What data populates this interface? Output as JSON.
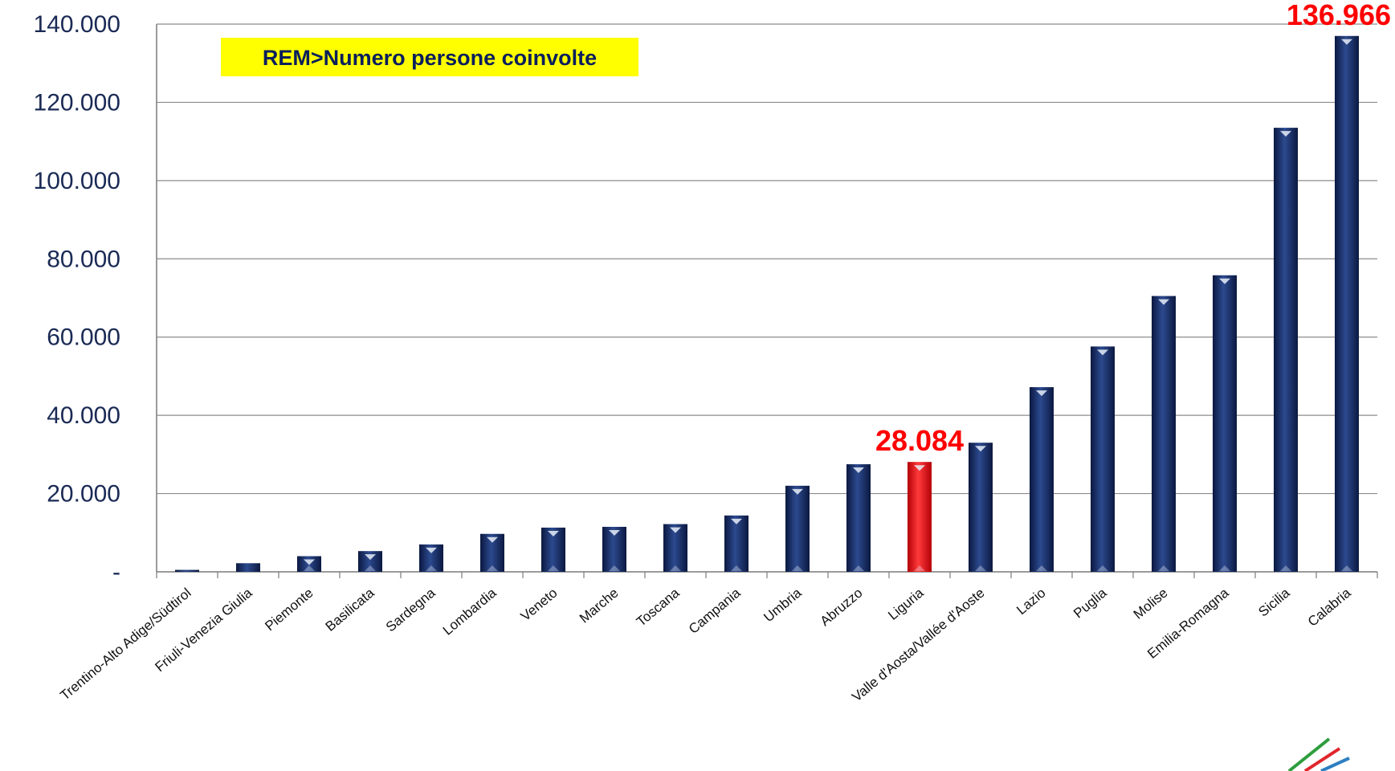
{
  "chart_data": {
    "type": "bar",
    "title": "REM>Numero persone coinvolte",
    "xlabel": "",
    "ylabel": "",
    "ylim": [
      0,
      140000
    ],
    "yticks": [
      {
        "value": 0,
        "label": "-"
      },
      {
        "value": 20000,
        "label": "20.000"
      },
      {
        "value": 40000,
        "label": "40.000"
      },
      {
        "value": 60000,
        "label": "60.000"
      },
      {
        "value": 80000,
        "label": "80.000"
      },
      {
        "value": 100000,
        "label": "100.000"
      },
      {
        "value": 120000,
        "label": "120.000"
      },
      {
        "value": 140000,
        "label": "140.000"
      }
    ],
    "grid": true,
    "legend": "none",
    "categories": [
      "Trentino-Alto Adige/Südtirol",
      "Friuli-Venezia Giulia",
      "Piemonte",
      "Basilicata",
      "Sardegna",
      "Lombardia",
      "Veneto",
      "Marche",
      "Toscana",
      "Campania",
      "Umbria",
      "Abruzzo",
      "Liguria",
      "Valle d'Aosta/Vallée d'Aoste",
      "Lazio",
      "Puglia",
      "Molise",
      "Emilia-Romagna",
      "Sicilia",
      "Calabria"
    ],
    "values": [
      500,
      2200,
      4000,
      5300,
      7000,
      9700,
      11300,
      11500,
      12200,
      14400,
      22000,
      27500,
      28084,
      33000,
      47200,
      57600,
      70500,
      75800,
      113500,
      136966
    ],
    "highlight": {
      "category": "Liguria",
      "color": "#e8000b"
    },
    "bar_color": "#14285e",
    "annotations": [
      {
        "category": "Liguria",
        "label": "28.084"
      },
      {
        "category": "Calabria",
        "label": "136.966"
      }
    ],
    "title_background": "#ffff00"
  }
}
